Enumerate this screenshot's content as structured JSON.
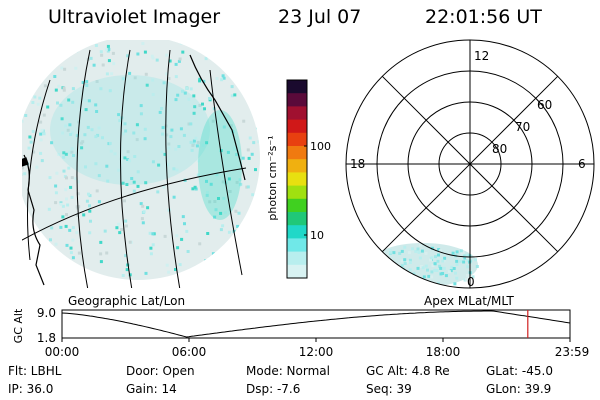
{
  "header": {
    "instrument": "Ultraviolet Imager",
    "date": "23 Jul 07",
    "time": "22:01:56 UT"
  },
  "colorbar": {
    "label": "photon cm⁻²s⁻¹",
    "ticks": [
      "100",
      "10"
    ],
    "colors": [
      "#1a0a2e",
      "#5a0a3a",
      "#a01030",
      "#d01818",
      "#e84010",
      "#f07a10",
      "#f0b010",
      "#e8e010",
      "#a0e010",
      "#40d020",
      "#20c878",
      "#20d8c8",
      "#70e8e8",
      "#b8eeee",
      "#d8f2f2"
    ]
  },
  "geo_panel": {
    "caption": "Geographic Lat/Lon"
  },
  "polar_panel": {
    "caption": "Apex MLat/MLT",
    "hour_labels": {
      "top": "12",
      "left": "18",
      "right": "6",
      "bottom": "0"
    },
    "lat_labels": [
      "60",
      "70",
      "80"
    ]
  },
  "altitude_plot": {
    "ylabel": "GC Alt",
    "yticks": [
      "9.0",
      "1.8"
    ],
    "xticks": [
      "00:00",
      "06:00",
      "12:00",
      "18:00",
      "23:59"
    ],
    "current_time_fraction": 0.917,
    "marker_color": "#d02020"
  },
  "info": {
    "filter": "Flt: LBHL",
    "ip": "IP: 36.0",
    "door": "Door: Open",
    "gain": "Gain: 14",
    "mode": "Mode: Normal",
    "dsp": "Dsp:   -7.6",
    "gc_alt": "GC Alt: 4.8 Re",
    "seq": "Seq: 39",
    "glat": "GLat: -45.0",
    "glon": "GLon:  39.9"
  }
}
